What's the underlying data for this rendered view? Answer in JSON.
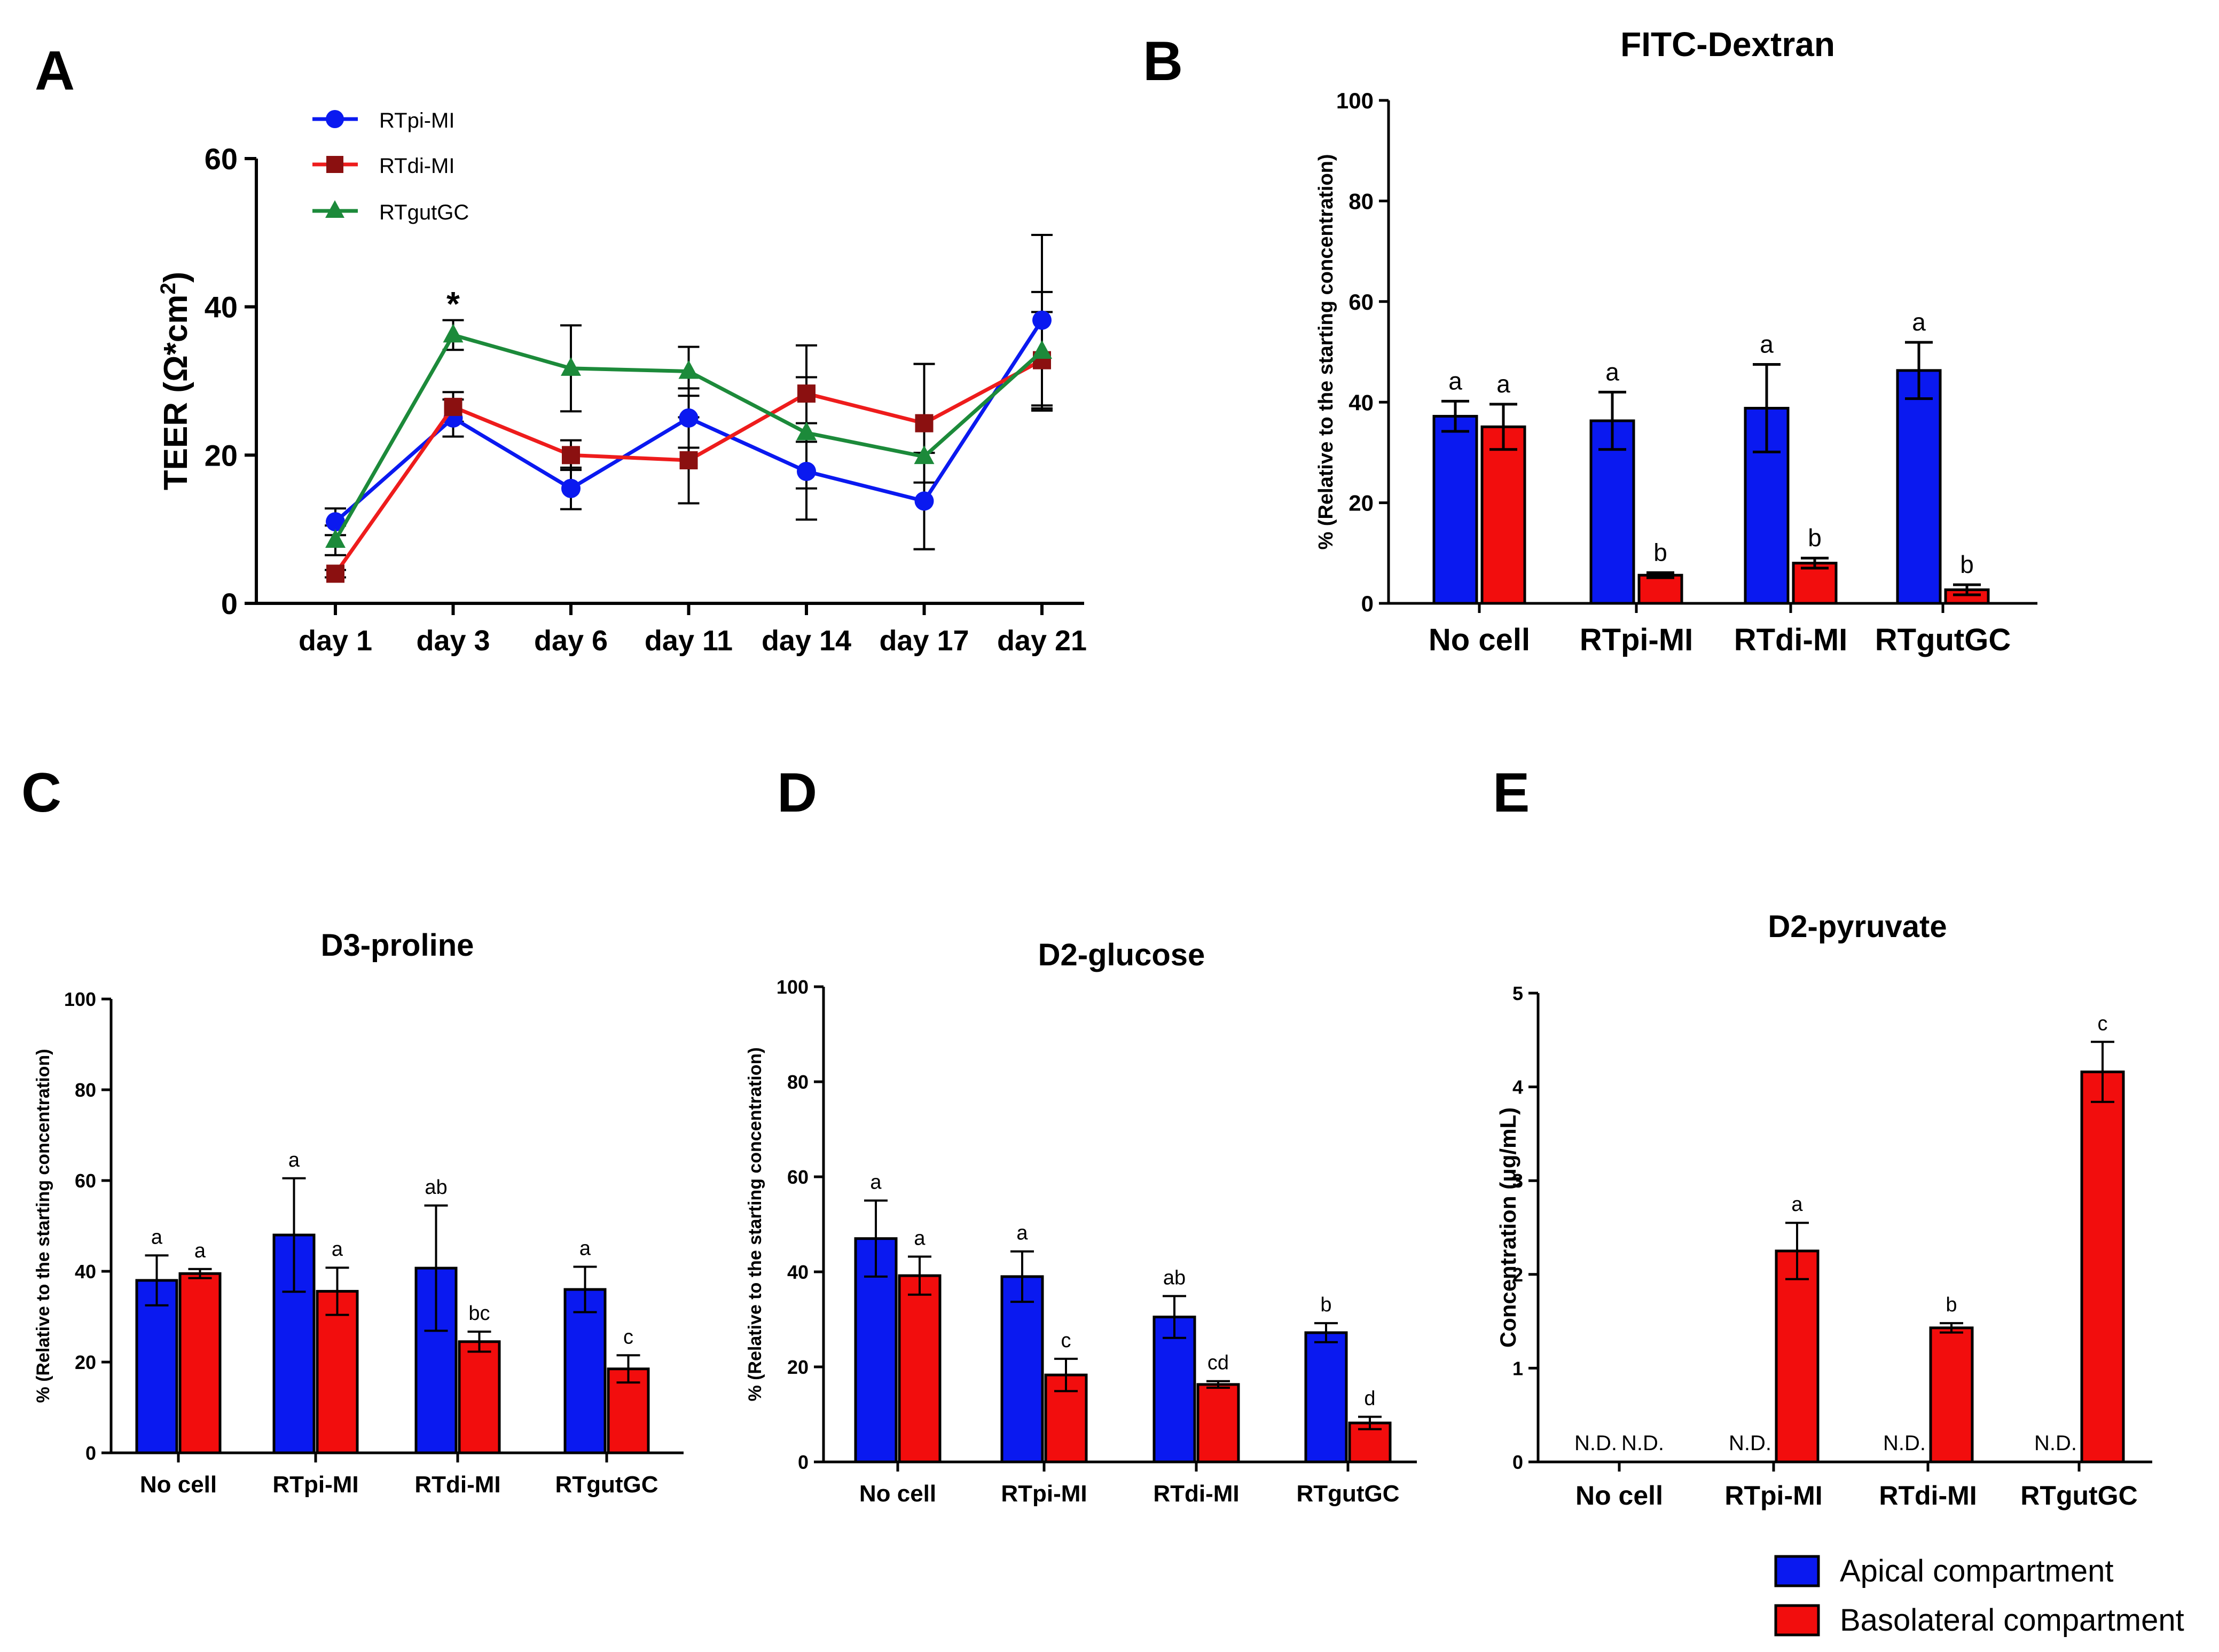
{
  "colors": {
    "blue": "#0a19f0",
    "red": "#f20d0d",
    "darkred": "#8b1010",
    "green": "#1c8a3a",
    "axis": "#000000"
  },
  "panel_labels": [
    "A",
    "B",
    "C",
    "D",
    "E"
  ],
  "legend": {
    "apical": "Apical compartment",
    "basolateral": "Basolateral compartment"
  },
  "chart_data": [
    {
      "id": "A",
      "type": "line",
      "title": "",
      "ylabel": "TEER (Ω*cm²)",
      "ylabel_main": "TEER (Ω*cm",
      "ylabel_sup": "2",
      "ylabel_end": ")",
      "categories": [
        "day 1",
        "day 3",
        "day 6",
        "day 11",
        "day 14",
        "day 17",
        "day 21"
      ],
      "ylim": [
        0,
        60
      ],
      "yticks": [
        0,
        20,
        40,
        60
      ],
      "annotations": [
        {
          "category": "day 3",
          "text": "*",
          "value": 42
        }
      ],
      "series": [
        {
          "name": "RTpi-MI",
          "marker": "circle",
          "color": "#0a19f0",
          "values": [
            11,
            25,
            15.5,
            25,
            17.8,
            13.8,
            38.2
          ],
          "errors": [
            1.8,
            2.5,
            2.8,
            4,
            6.5,
            6.5,
            11.5
          ]
        },
        {
          "name": "RTdi-MI",
          "marker": "square",
          "color": "#8b1010",
          "values": [
            4,
            26.5,
            20,
            19.3,
            28.3,
            24.3,
            32.8
          ],
          "errors": [
            0.5,
            2,
            2,
            5.8,
            6.5,
            8,
            6.5
          ]
        },
        {
          "name": "RTgutGC",
          "marker": "triangle",
          "color": "#1c8a3a",
          "values": [
            8.5,
            36.2,
            31.7,
            31.3,
            23,
            19.8,
            34
          ],
          "errors": [
            2,
            2,
            5.8,
            3.3,
            7.5,
            12.5,
            8
          ]
        }
      ]
    },
    {
      "id": "B",
      "type": "bar",
      "title": "FITC-Dextran",
      "ylabel": "% (Relative to the starting concentration)",
      "categories": [
        "No cell",
        "RTpi-MI",
        "RTdi-MI",
        "RTgutGC"
      ],
      "ylim": [
        0,
        100
      ],
      "yticks": [
        0,
        20,
        40,
        60,
        80,
        100
      ],
      "series": [
        {
          "name": "Apical compartment",
          "values": [
            37.2,
            36.3,
            38.8,
            46.3
          ],
          "errors": [
            3,
            5.7,
            8.7,
            5.6
          ],
          "letters": [
            "a",
            "a",
            "a",
            "a"
          ]
        },
        {
          "name": "Basolateral compartment",
          "values": [
            35.1,
            5.6,
            8,
            2.7
          ],
          "errors": [
            4.5,
            0.5,
            1,
            1
          ],
          "letters": [
            "a",
            "b",
            "b",
            "b"
          ]
        }
      ]
    },
    {
      "id": "C",
      "type": "bar",
      "title": "D3-proline",
      "ylabel": "% (Relative to the starting concentration)",
      "categories": [
        "No cell",
        "RTpi-MI",
        "RTdi-MI",
        "RTgutGC"
      ],
      "ylim": [
        0,
        100
      ],
      "yticks": [
        0,
        20,
        40,
        60,
        80,
        100
      ],
      "series": [
        {
          "name": "Apical compartment",
          "values": [
            38,
            48,
            40.7,
            36
          ],
          "errors": [
            5.5,
            12.5,
            13.8,
            5
          ],
          "letters": [
            "a",
            "a",
            "ab",
            "a"
          ]
        },
        {
          "name": "Basolateral compartment",
          "values": [
            39.5,
            35.6,
            24.5,
            18.5
          ],
          "errors": [
            1,
            5.2,
            2.2,
            3
          ],
          "letters": [
            "a",
            "a",
            "bc",
            "c"
          ]
        }
      ]
    },
    {
      "id": "D",
      "type": "bar",
      "title": "D2-glucose",
      "ylabel": "% (Relative to the starting concentration)",
      "categories": [
        "No cell",
        "RTpi-MI",
        "RTdi-MI",
        "RTgutGC"
      ],
      "ylim": [
        0,
        100
      ],
      "yticks": [
        0,
        20,
        40,
        60,
        80,
        100
      ],
      "series": [
        {
          "name": "Apical compartment",
          "values": [
            47,
            39,
            30.5,
            27.2
          ],
          "errors": [
            8,
            5.3,
            4.4,
            2
          ],
          "letters": [
            "a",
            "a",
            "ab",
            "b"
          ]
        },
        {
          "name": "Basolateral compartment",
          "values": [
            39.2,
            18.3,
            16.3,
            8.2
          ],
          "errors": [
            4,
            3.4,
            0.7,
            1.3
          ],
          "letters": [
            "a",
            "c",
            "cd",
            "d"
          ]
        }
      ]
    },
    {
      "id": "E",
      "type": "bar",
      "title": "D2-pyruvate",
      "ylabel": "Concentration (μg/mL)",
      "categories": [
        "No cell",
        "RTpi-MI",
        "RTdi-MI",
        "RTgutGC"
      ],
      "ylim": [
        0,
        5
      ],
      "yticks": [
        0,
        1,
        2,
        3,
        4,
        5
      ],
      "not_detected_label": "N.D.",
      "series": [
        {
          "name": "Apical compartment",
          "values": [
            null,
            null,
            null,
            null
          ],
          "errors": [
            0,
            0,
            0,
            0
          ],
          "letters": [
            "",
            "",
            "",
            ""
          ]
        },
        {
          "name": "Basolateral compartment",
          "values": [
            null,
            2.25,
            1.43,
            4.16
          ],
          "errors": [
            0,
            0.3,
            0.05,
            0.32
          ],
          "letters": [
            "",
            "a",
            "b",
            "c"
          ]
        }
      ]
    }
  ]
}
